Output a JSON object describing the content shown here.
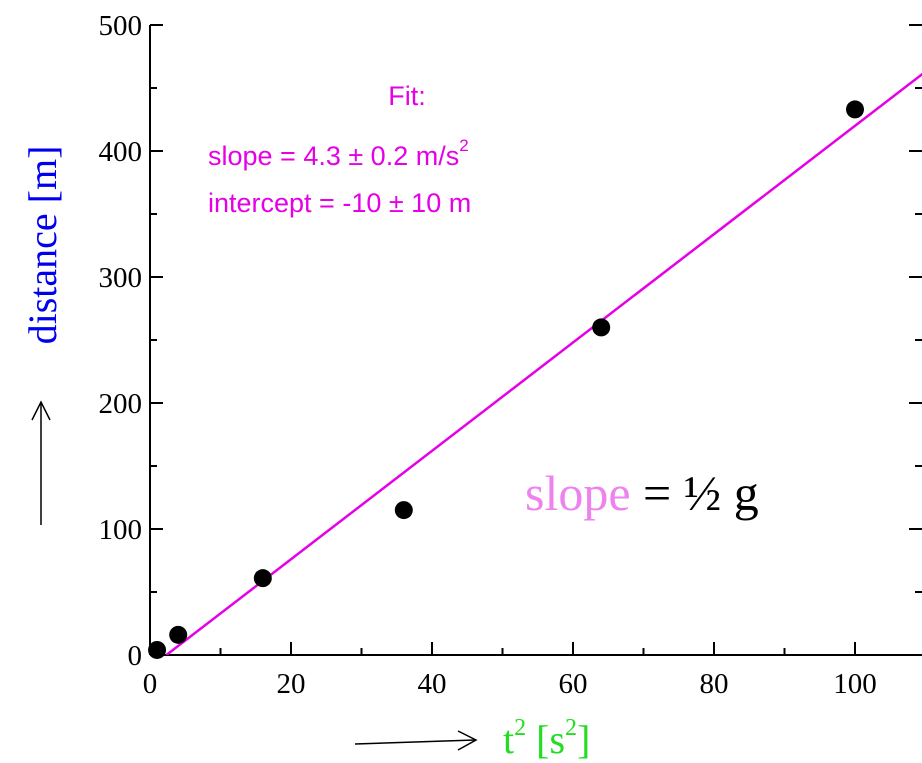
{
  "chart_data": {
    "type": "scatter",
    "x_label": {
      "main": "t",
      "sup": "2",
      "open": " [s",
      "sup2": "2",
      "close": "]"
    },
    "y_label": "distance [m]",
    "xlim": [
      0,
      110
    ],
    "ylim": [
      0,
      500
    ],
    "x_ticks": [
      0,
      20,
      40,
      60,
      80,
      100
    ],
    "y_ticks": [
      0,
      100,
      200,
      300,
      400,
      500
    ],
    "grid": false,
    "series": [
      {
        "points": [
          {
            "x": 1,
            "y": 4
          },
          {
            "x": 4,
            "y": 16
          },
          {
            "x": 16,
            "y": 61
          },
          {
            "x": 36,
            "y": 115
          },
          {
            "x": 64,
            "y": 260
          },
          {
            "x": 100,
            "y": 433
          }
        ]
      }
    ],
    "fit_line": {
      "slope": 4.3,
      "intercept": -10
    },
    "annotations": {
      "fit_title": "Fit:",
      "fit_slope_text": "slope = 4.3 ± 0.2 m/s",
      "fit_slope_sup": "2",
      "fit_intercept_text": "intercept = -10 ± 10 m",
      "big_slope_word": "slope",
      "big_slope_rest": " = ½ g"
    },
    "colors": {
      "axis": "#000000",
      "points": "#000000",
      "fit_line": "#e600e6",
      "fit_text": "#e600e6",
      "big_slope_word": "#ee82ee",
      "x_label": "#22dd22",
      "y_label": "#0000ee",
      "arrows": "#000000"
    }
  }
}
